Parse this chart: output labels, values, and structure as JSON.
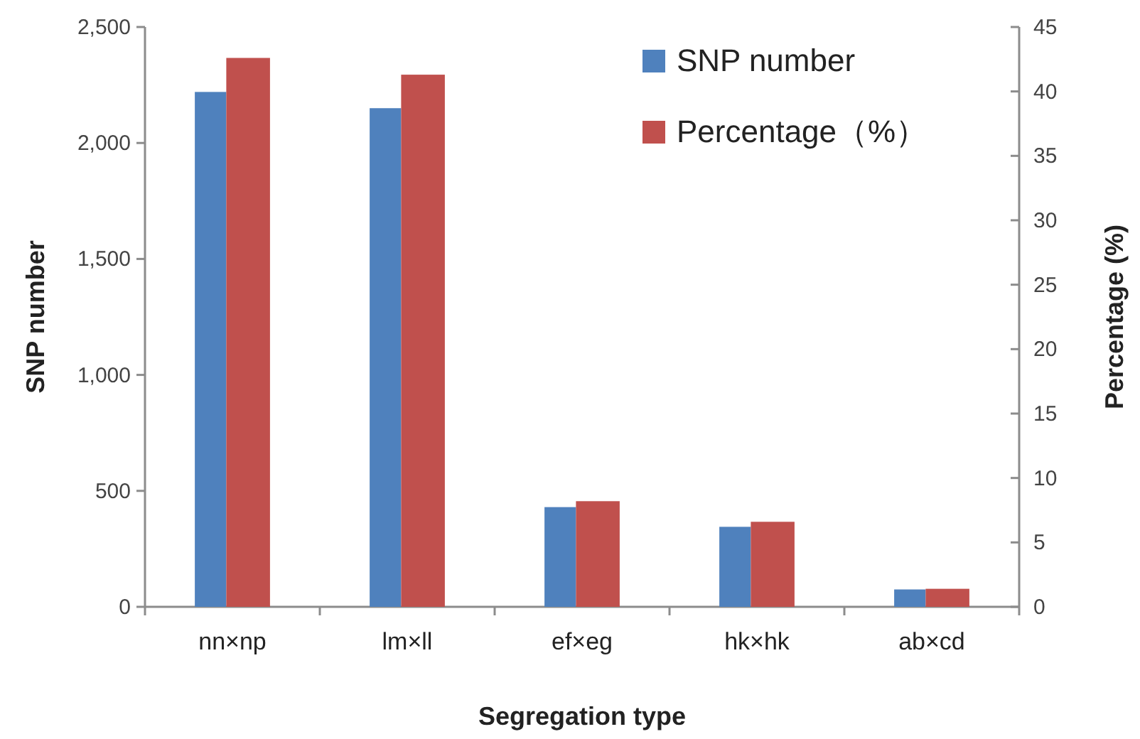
{
  "chart_data": {
    "type": "bar",
    "xlabel": "Segregation type",
    "ylabel": "SNP number",
    "y2label": "Percentage (%)",
    "categories": [
      "nn×np",
      "lm×ll",
      "ef×eg",
      "hk×hk",
      "ab×cd"
    ],
    "series": [
      {
        "name": "SNP number",
        "color": "#4f81bd",
        "values": [
          2220,
          2150,
          430,
          345,
          75
        ]
      },
      {
        "name": "Percentage（%）",
        "color": "#c0504d",
        "values": [
          42.6,
          41.3,
          8.2,
          6.6,
          1.4
        ],
        "axis": "y2"
      }
    ],
    "ylim": [
      0,
      2500
    ],
    "yticks": [
      0,
      500,
      {
        "value": 1000,
        "label": "1,000"
      },
      {
        "value": 1500,
        "label": "1,500"
      },
      {
        "value": 2000,
        "label": "2,000"
      },
      {
        "value": 2500,
        "label": "2,500"
      }
    ],
    "y2lim": [
      0,
      45
    ],
    "y2ticks": [
      0,
      5,
      10,
      15,
      20,
      25,
      30,
      35,
      40,
      45
    ],
    "legend": "top right"
  }
}
